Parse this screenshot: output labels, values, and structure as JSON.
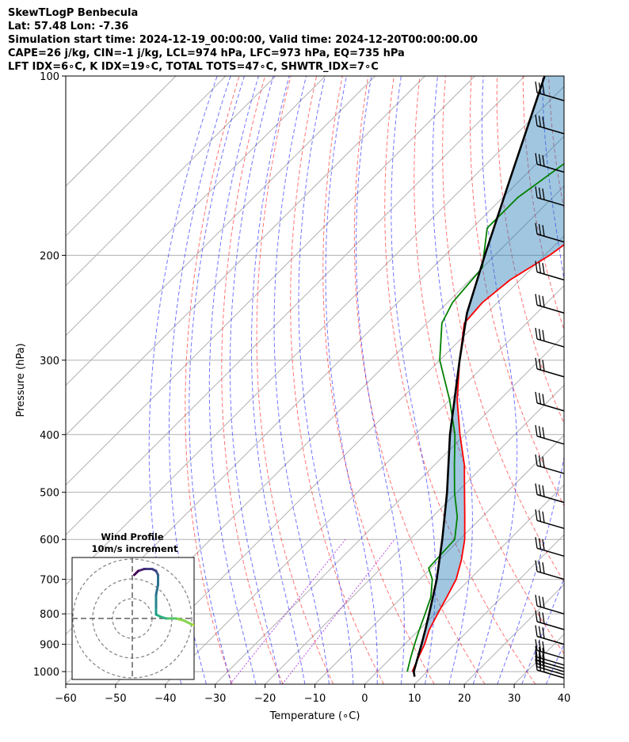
{
  "header": {
    "line1": "SkewTLogP Benbecula",
    "line2": "Lat: 57.48   Lon: -7.36",
    "line3": "Simulation start time: 2024-12-19_00:00:00, Valid time: 2024-12-20T00:00:00.00",
    "line4": "CAPE=26 j/kg, CIN=-1 j/kg, LCL=974 hPa, LFC=973 hPa, EQ=735 hPa",
    "line5": "LFT IDX=6∘C, K IDX=19∘C, TOTAL TOTS=47∘C, SHWTR_IDX=7∘C"
  },
  "chart_data": {
    "type": "line",
    "chart_kind": "Skew-T log-P diagram",
    "xlabel": "Temperature (∘C)",
    "ylabel": "Pressure (hPa)",
    "xlim": [
      -60,
      40
    ],
    "ylim": [
      1050,
      100
    ],
    "y_scale": "log",
    "grid": true,
    "x_ticks": [
      -60,
      -50,
      -40,
      -30,
      -20,
      -10,
      0,
      10,
      20,
      30,
      40
    ],
    "y_ticks": [
      100,
      200,
      300,
      400,
      500,
      600,
      700,
      800,
      900,
      1000
    ],
    "series": [
      {
        "color": "#ff0000",
        "points": [
          {
            "p": 1000,
            "t": 7.0
          },
          {
            "p": 950,
            "t": 5.5
          },
          {
            "p": 900,
            "t": 4.0
          },
          {
            "p": 850,
            "t": 2.0
          },
          {
            "p": 800,
            "t": 0.5
          },
          {
            "p": 750,
            "t": -1.0
          },
          {
            "p": 700,
            "t": -2.7
          },
          {
            "p": 650,
            "t": -5.5
          },
          {
            "p": 600,
            "t": -9.0
          },
          {
            "p": 550,
            "t": -13.5
          },
          {
            "p": 500,
            "t": -18.5
          },
          {
            "p": 450,
            "t": -24.0
          },
          {
            "p": 400,
            "t": -31.0
          },
          {
            "p": 350,
            "t": -38.5
          },
          {
            "p": 300,
            "t": -46.0
          },
          {
            "p": 260,
            "t": -52.5
          },
          {
            "p": 240,
            "t": -53.0
          },
          {
            "p": 220,
            "t": -52.0
          },
          {
            "p": 200,
            "t": -49.0
          },
          {
            "p": 180,
            "t": -47.0
          },
          {
            "p": 160,
            "t": -49.0
          },
          {
            "p": 140,
            "t": -50.0
          },
          {
            "p": 120,
            "t": -51.0
          },
          {
            "p": 100,
            "t": -51.0
          }
        ]
      },
      {
        "color": "#008000",
        "points": [
          {
            "p": 1000,
            "t": 6.0
          },
          {
            "p": 950,
            "t": 4.0
          },
          {
            "p": 900,
            "t": 2.0
          },
          {
            "p": 850,
            "t": 0.0
          },
          {
            "p": 800,
            "t": -2.0
          },
          {
            "p": 750,
            "t": -4.2
          },
          {
            "p": 700,
            "t": -7.5
          },
          {
            "p": 670,
            "t": -10.5
          },
          {
            "p": 600,
            "t": -11.0
          },
          {
            "p": 550,
            "t": -15.0
          },
          {
            "p": 500,
            "t": -20.5
          },
          {
            "p": 450,
            "t": -26.0
          },
          {
            "p": 400,
            "t": -32.0
          },
          {
            "p": 350,
            "t": -40.0
          },
          {
            "p": 300,
            "t": -50.0
          },
          {
            "p": 260,
            "t": -57.0
          },
          {
            "p": 240,
            "t": -59.0
          },
          {
            "p": 210,
            "t": -60.0
          },
          {
            "p": 180,
            "t": -67.0
          },
          {
            "p": 160,
            "t": -67.0
          },
          {
            "p": 130,
            "t": -63.0
          },
          {
            "p": 100,
            "t": -61.0
          }
        ]
      },
      {
        "color": "#000000",
        "points": [
          {
            "p": 1020,
            "t": 8.5
          },
          {
            "p": 1000,
            "t": 7.3
          },
          {
            "p": 950,
            "t": 5.4
          },
          {
            "p": 900,
            "t": 3.4
          },
          {
            "p": 850,
            "t": 1.2
          },
          {
            "p": 800,
            "t": -1.2
          },
          {
            "p": 750,
            "t": -3.8
          },
          {
            "p": 700,
            "t": -6.6
          },
          {
            "p": 600,
            "t": -13.5
          },
          {
            "p": 500,
            "t": -22.0
          },
          {
            "p": 400,
            "t": -33.0
          },
          {
            "p": 300,
            "t": -46.0
          },
          {
            "p": 250,
            "t": -54.0
          },
          {
            "p": 200,
            "t": -62.0
          },
          {
            "p": 150,
            "t": -72.0
          },
          {
            "p": 100,
            "t": -86.0
          }
        ]
      }
    ],
    "barb_pressures": [
      1025,
      1012,
      1000,
      988,
      975,
      950,
      900,
      850,
      800,
      700,
      640,
      575,
      520,
      465,
      415,
      365,
      320,
      285,
      250,
      220,
      190,
      165,
      145,
      125,
      110
    ],
    "hodograph": {
      "title": "Wind Profile",
      "subtitle": "10m/s increment",
      "points_uv": [
        [
          36,
          -6
        ],
        [
          35,
          -5
        ],
        [
          33,
          -4
        ],
        [
          30,
          -3
        ],
        [
          26,
          -1
        ],
        [
          22,
          0
        ],
        [
          17,
          0
        ],
        [
          14,
          1
        ],
        [
          12,
          2
        ],
        [
          12,
          6
        ],
        [
          12,
          12
        ],
        [
          13,
          17
        ],
        [
          13,
          22
        ],
        [
          12,
          24
        ],
        [
          10,
          25
        ],
        [
          6,
          25
        ],
        [
          3,
          24
        ],
        [
          1,
          22
        ]
      ]
    }
  }
}
